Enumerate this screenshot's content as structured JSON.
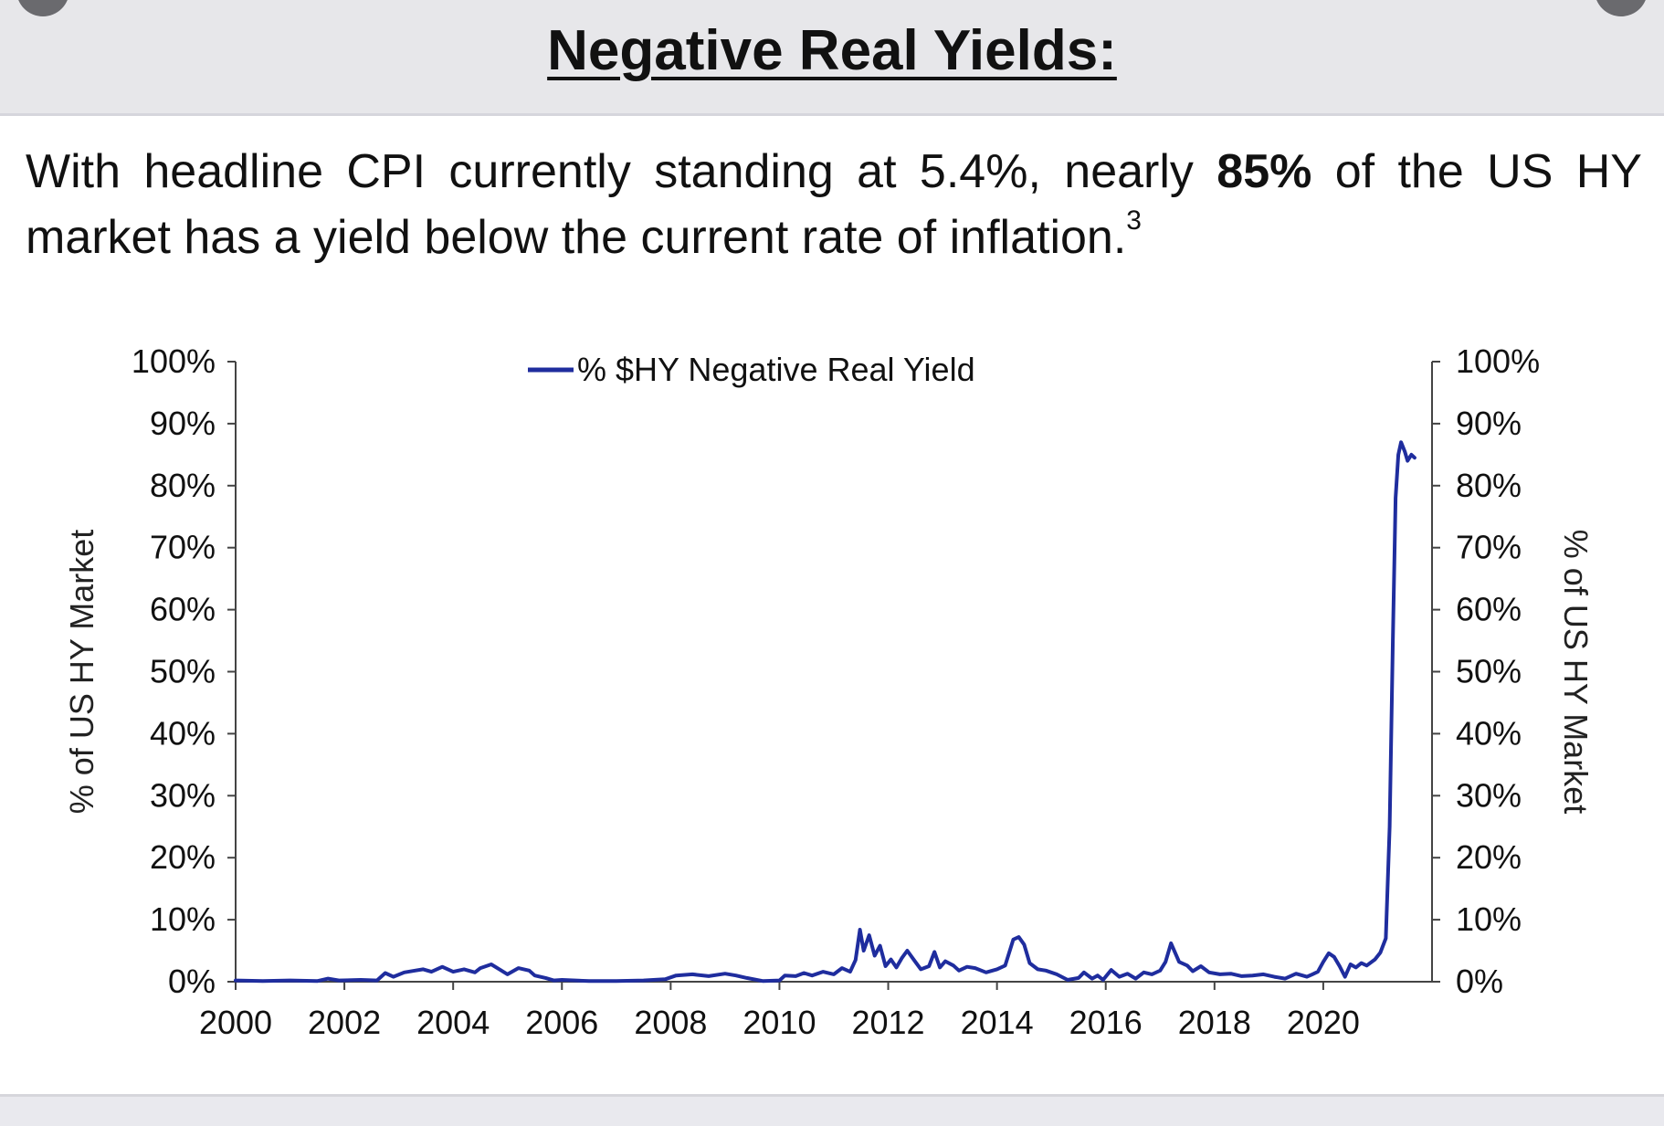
{
  "header": {
    "title": "Negative Real Yields:"
  },
  "subtitle": {
    "part1": "With headline CPI currently standing at 5.4%, nearly ",
    "bold": "85%",
    "part2": " of the US HY market has a yield below the current rate of inflation.",
    "footnote": "3"
  },
  "colors": {
    "series": "#1f2d9e",
    "axis": "#444444",
    "header_bg": "#e7e7ea"
  },
  "chart_data": {
    "type": "line",
    "title": "",
    "legend": {
      "placement": "top-center"
    },
    "grid": false,
    "ylabel_left": "% of US HY Market",
    "ylabel_right": "% of US HY Market",
    "xlim": [
      2000,
      2022
    ],
    "ylim": [
      0,
      100
    ],
    "x_ticks": [
      2000,
      2002,
      2004,
      2006,
      2008,
      2010,
      2012,
      2014,
      2016,
      2018,
      2020
    ],
    "x_tick_labels": [
      "2000",
      "2002",
      "2004",
      "2006",
      "2008",
      "2010",
      "2012",
      "2014",
      "2016",
      "2018",
      "2020"
    ],
    "y_ticks": [
      0,
      10,
      20,
      30,
      40,
      50,
      60,
      70,
      80,
      90,
      100
    ],
    "y_tick_labels": [
      "0%",
      "10%",
      "20%",
      "30%",
      "40%",
      "50%",
      "60%",
      "70%",
      "80%",
      "90%",
      "100%"
    ],
    "series": [
      {
        "name": "% $HY Negative Real Yield",
        "x": [
          2000.0,
          2000.5,
          2001.0,
          2001.5,
          2001.7,
          2001.9,
          2002.3,
          2002.6,
          2002.75,
          2002.9,
          2003.1,
          2003.3,
          2003.45,
          2003.6,
          2003.8,
          2004.0,
          2004.2,
          2004.4,
          2004.5,
          2004.7,
          2004.85,
          2005.0,
          2005.2,
          2005.4,
          2005.5,
          2005.7,
          2005.85,
          2006.0,
          2006.5,
          2007.0,
          2007.5,
          2007.9,
          2008.1,
          2008.4,
          2008.7,
          2009.0,
          2009.2,
          2009.4,
          2009.7,
          2010.0,
          2010.1,
          2010.3,
          2010.45,
          2010.6,
          2010.8,
          2011.0,
          2011.15,
          2011.3,
          2011.4,
          2011.48,
          2011.55,
          2011.65,
          2011.75,
          2011.85,
          2011.95,
          2012.05,
          2012.15,
          2012.25,
          2012.35,
          2012.5,
          2012.6,
          2012.75,
          2012.85,
          2012.95,
          2013.05,
          2013.2,
          2013.3,
          2013.45,
          2013.6,
          2013.8,
          2014.0,
          2014.15,
          2014.3,
          2014.4,
          2014.5,
          2014.6,
          2014.75,
          2014.9,
          2015.1,
          2015.3,
          2015.5,
          2015.6,
          2015.75,
          2015.85,
          2015.95,
          2016.1,
          2016.25,
          2016.4,
          2016.55,
          2016.7,
          2016.85,
          2017.0,
          2017.1,
          2017.2,
          2017.35,
          2017.5,
          2017.6,
          2017.75,
          2017.9,
          2018.1,
          2018.3,
          2018.5,
          2018.7,
          2018.9,
          2019.1,
          2019.3,
          2019.5,
          2019.7,
          2019.8,
          2019.9,
          2020.0,
          2020.1,
          2020.2,
          2020.3,
          2020.4,
          2020.5,
          2020.6,
          2020.7,
          2020.8,
          2020.95,
          2021.05,
          2021.15,
          2021.22,
          2021.28,
          2021.33,
          2021.38,
          2021.43,
          2021.5,
          2021.55,
          2021.62,
          2021.68
        ],
        "values": [
          0.2,
          0.1,
          0.2,
          0.1,
          0.5,
          0.2,
          0.3,
          0.2,
          1.4,
          0.8,
          1.5,
          1.8,
          2.0,
          1.6,
          2.4,
          1.6,
          2.0,
          1.5,
          2.2,
          2.8,
          2.0,
          1.2,
          2.2,
          1.8,
          1.0,
          0.6,
          0.2,
          0.3,
          0.1,
          0.1,
          0.2,
          0.4,
          1.0,
          1.2,
          0.9,
          1.3,
          1.0,
          0.6,
          0.1,
          0.2,
          1.0,
          0.9,
          1.4,
          1.0,
          1.6,
          1.2,
          2.2,
          1.6,
          3.5,
          8.4,
          5.0,
          7.5,
          4.2,
          5.8,
          2.5,
          3.6,
          2.3,
          3.8,
          5.0,
          3.2,
          2.0,
          2.5,
          4.8,
          2.3,
          3.3,
          2.6,
          1.8,
          2.4,
          2.2,
          1.5,
          2.0,
          2.6,
          6.8,
          7.2,
          6.0,
          3.0,
          2.0,
          1.8,
          1.2,
          0.3,
          0.6,
          1.5,
          0.5,
          1.0,
          0.3,
          1.9,
          0.8,
          1.3,
          0.5,
          1.5,
          1.2,
          1.8,
          3.2,
          6.2,
          3.2,
          2.6,
          1.7,
          2.5,
          1.5,
          1.2,
          1.3,
          0.9,
          1.0,
          1.2,
          0.8,
          0.5,
          1.3,
          0.8,
          1.2,
          1.6,
          3.2,
          4.6,
          4.0,
          2.5,
          0.8,
          2.8,
          2.3,
          3.0,
          2.6,
          3.6,
          4.7,
          7.0,
          25.0,
          55.0,
          78.0,
          85.0,
          87.0,
          85.5,
          84.0,
          85.0,
          84.5
        ]
      }
    ]
  }
}
